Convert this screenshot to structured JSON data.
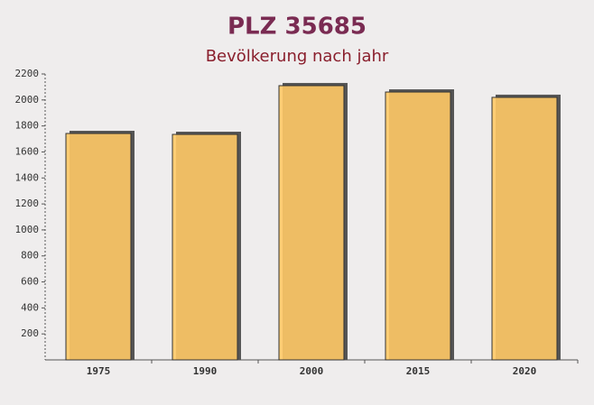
{
  "chart_data": {
    "type": "bar",
    "title": "PLZ 35685",
    "subtitle": "Bevölkerung nach jahr",
    "categories": [
      "1975",
      "1990",
      "2000",
      "2015",
      "2020"
    ],
    "values": [
      1742,
      1735,
      2110,
      2061,
      2020
    ],
    "color": "#ffc966",
    "ylim": [
      0,
      2200
    ],
    "yticks": [
      200,
      400,
      600,
      800,
      1000,
      1200,
      1400,
      1600,
      1800,
      2000,
      2200
    ]
  }
}
